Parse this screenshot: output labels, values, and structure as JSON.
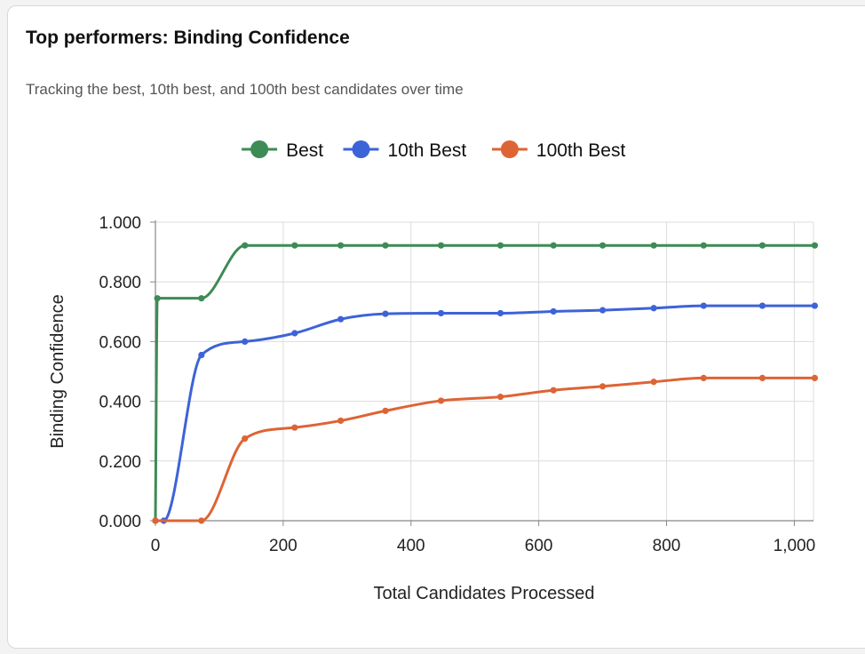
{
  "card": {
    "title": "Top performers: Binding Confidence",
    "subtitle": "Tracking the best, 10th best, and 100th best candidates over time"
  },
  "chart_data": {
    "type": "line",
    "xlabel": "Total Candidates Processed",
    "ylabel": "Binding Confidence",
    "xlim": [
      0,
      1030
    ],
    "ylim": [
      0,
      1
    ],
    "x_ticks": [
      0,
      200,
      400,
      600,
      800,
      1000
    ],
    "x_tick_labels": [
      "0",
      "200",
      "400",
      "600",
      "800",
      "1,000"
    ],
    "y_ticks": [
      0,
      0.2,
      0.4,
      0.6,
      0.8,
      1.0
    ],
    "y_tick_labels": [
      "0.000",
      "0.200",
      "0.400",
      "0.600",
      "0.800",
      "1.000"
    ],
    "grid": true,
    "legend_position": "top-center",
    "series": [
      {
        "name": "Best",
        "color": "#3d8b55",
        "x": [
          0,
          3,
          72,
          140,
          218,
          290,
          360,
          447,
          540,
          623,
          700,
          780,
          858,
          950,
          1032
        ],
        "y": [
          0.0,
          0.745,
          0.745,
          0.922,
          0.922,
          0.922,
          0.922,
          0.922,
          0.922,
          0.922,
          0.922,
          0.922,
          0.922,
          0.922,
          0.922
        ]
      },
      {
        "name": "10th Best",
        "color": "#3d63d8",
        "x": [
          0,
          13,
          72,
          140,
          218,
          290,
          360,
          447,
          540,
          623,
          700,
          780,
          858,
          950,
          1032
        ],
        "y": [
          0.0,
          0.0,
          0.555,
          0.6,
          0.628,
          0.675,
          0.693,
          0.695,
          0.695,
          0.701,
          0.705,
          0.712,
          0.72,
          0.72,
          0.72
        ]
      },
      {
        "name": "100th Best",
        "color": "#dd6435",
        "x": [
          0,
          72,
          140,
          218,
          290,
          360,
          447,
          540,
          623,
          700,
          780,
          858,
          950,
          1032
        ],
        "y": [
          0.0,
          0.0,
          0.275,
          0.312,
          0.335,
          0.368,
          0.402,
          0.415,
          0.437,
          0.45,
          0.465,
          0.478,
          0.478,
          0.478
        ]
      }
    ]
  }
}
